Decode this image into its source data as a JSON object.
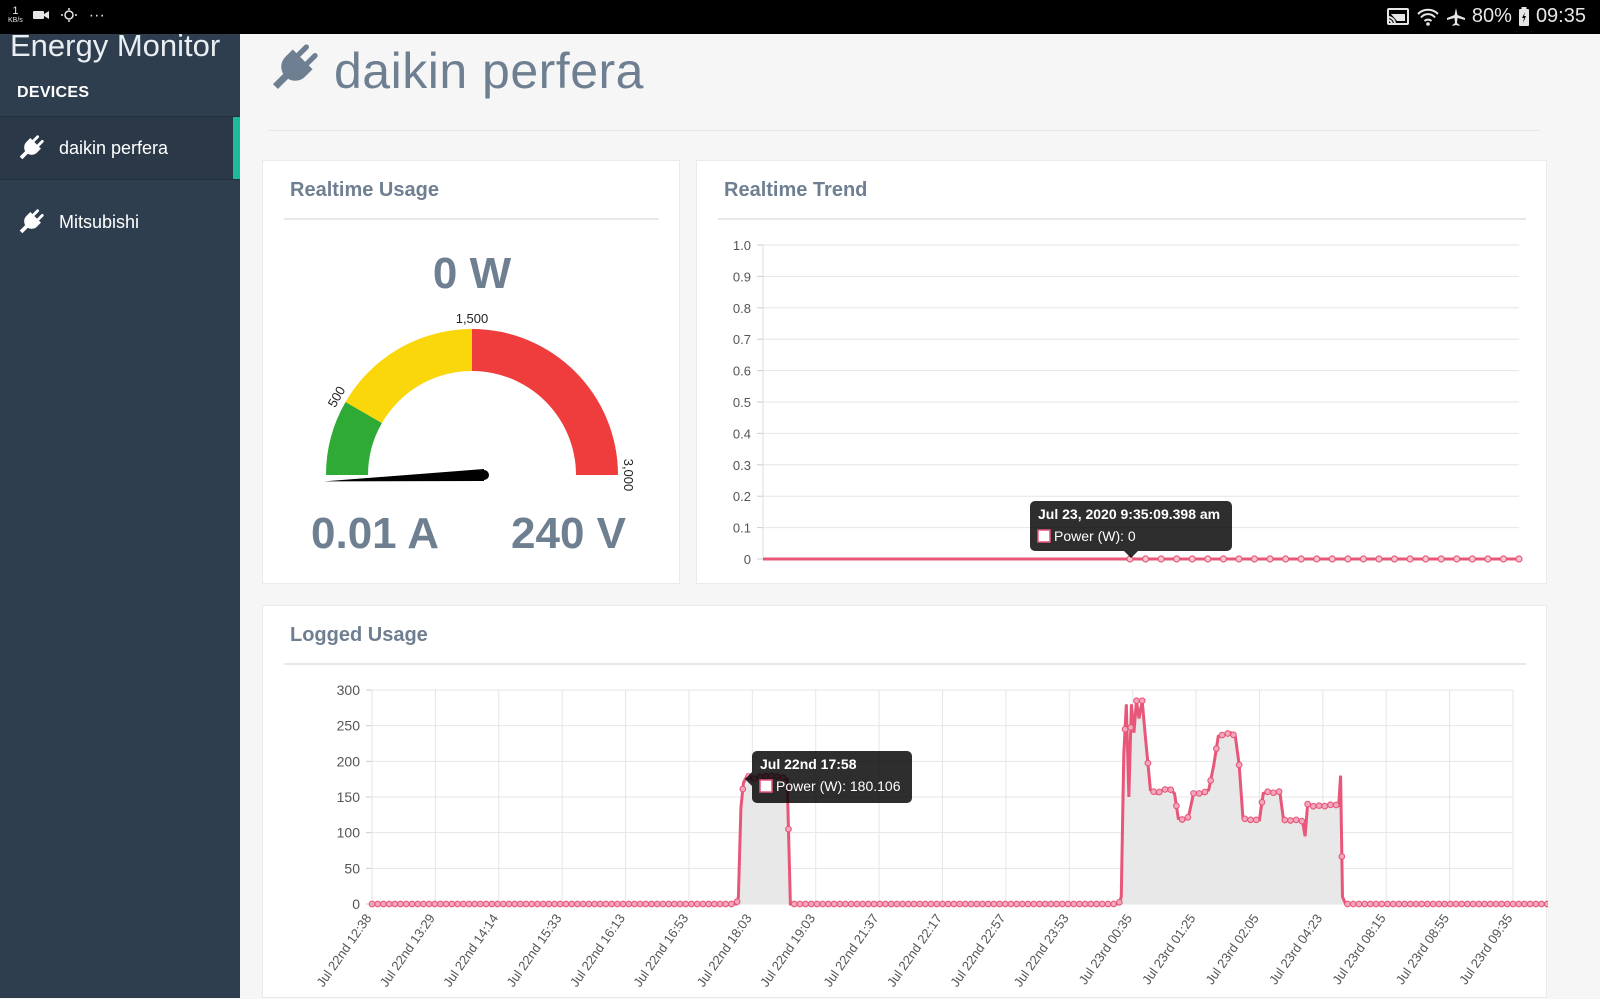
{
  "status_bar": {
    "kbs_value": "1",
    "kbs_unit": "KB/s",
    "more": "···",
    "battery": "80%",
    "time": "09:35"
  },
  "sidebar": {
    "brand": "Energy Monitor",
    "section_label": "DEVICES",
    "items": [
      {
        "label": "daikin perfera",
        "active": true
      },
      {
        "label": "Mitsubishi",
        "active": false
      }
    ]
  },
  "header": {
    "title": "daikin perfera"
  },
  "realtime_usage": {
    "title": "Realtime Usage",
    "power": "0 W",
    "current": "0.01 A",
    "voltage": "240 V",
    "gauge": {
      "min": 0,
      "max": 3000,
      "value": 0,
      "tick_labels": [
        {
          "value": 500,
          "label": "500"
        },
        {
          "value": 1500,
          "label": "1,500"
        },
        {
          "value": 3000,
          "label": "3,000"
        }
      ],
      "bands": [
        {
          "from": 0,
          "to": 500,
          "color": "#2eaa35"
        },
        {
          "from": 500,
          "to": 1500,
          "color": "#fad70a"
        },
        {
          "from": 1500,
          "to": 3000,
          "color": "#ef3c3c"
        }
      ]
    }
  },
  "realtime_trend": {
    "title": "Realtime Trend",
    "tooltip_title": "Jul 23, 2020 9:35:09.398 am",
    "tooltip_label": "Power (W): 0"
  },
  "logged_usage": {
    "title": "Logged Usage",
    "tooltip_title": "Jul 22nd 17:58",
    "tooltip_label": "Power (W): 180.106"
  },
  "chart_data": [
    {
      "type": "line",
      "name": "realtime-trend",
      "series": [
        {
          "name": "Power (W)",
          "values": [
            0,
            0,
            0,
            0,
            0,
            0,
            0,
            0,
            0,
            0,
            0,
            0,
            0,
            0,
            0,
            0,
            0,
            0,
            0,
            0,
            0,
            0,
            0,
            0,
            0,
            0
          ]
        }
      ],
      "ylim": [
        0,
        1.0
      ],
      "yticks": [
        "1.0",
        "0.9",
        "0.8",
        "0.7",
        "0.6",
        "0.5",
        "0.4",
        "0.3",
        "0.2",
        "0.1",
        "0"
      ],
      "line_color": "#e8577a",
      "grid": true
    },
    {
      "type": "area",
      "name": "logged-usage",
      "series": [
        {
          "name": "Power (W)"
        }
      ],
      "ylim": [
        0,
        300
      ],
      "yticks": [
        "300",
        "250",
        "200",
        "150",
        "100",
        "50",
        "0"
      ],
      "xticks": [
        "Jul 22nd 12:38",
        "Jul 22nd 13:29",
        "Jul 22nd 14:14",
        "Jul 22nd 15:33",
        "Jul 22nd 16:13",
        "Jul 22nd 16:53",
        "Jul 22nd 18:03",
        "Jul 22nd 19:03",
        "Jul 22nd 21:37",
        "Jul 22nd 22:17",
        "Jul 22nd 22:57",
        "Jul 22nd 23:53",
        "Jul 23rd 00:35",
        "Jul 23rd 01:25",
        "Jul 23rd 02:05",
        "Jul 23rd 04:23",
        "Jul 23rd 08:15",
        "Jul 23rd 08:55",
        "Jul 23rd 09:35"
      ],
      "points": [
        [
          0,
          0
        ],
        [
          5.75,
          0
        ],
        [
          5.78,
          10
        ],
        [
          5.82,
          135
        ],
        [
          5.86,
          170
        ],
        [
          5.92,
          180.106
        ],
        [
          6.0,
          175
        ],
        [
          6.1,
          178
        ],
        [
          6.3,
          180
        ],
        [
          6.45,
          178
        ],
        [
          6.55,
          175
        ],
        [
          6.6,
          0
        ],
        [
          6.68,
          0
        ],
        [
          11.78,
          0
        ],
        [
          11.82,
          10
        ],
        [
          11.86,
          210
        ],
        [
          11.9,
          280
        ],
        [
          11.94,
          150
        ],
        [
          11.98,
          280
        ],
        [
          12.02,
          240
        ],
        [
          12.06,
          285
        ],
        [
          12.1,
          260
        ],
        [
          12.15,
          285
        ],
        [
          12.2,
          235
        ],
        [
          12.28,
          160
        ],
        [
          12.38,
          155
        ],
        [
          12.48,
          160
        ],
        [
          12.58,
          162
        ],
        [
          12.66,
          155
        ],
        [
          12.72,
          120
        ],
        [
          12.8,
          118
        ],
        [
          12.88,
          122
        ],
        [
          12.96,
          155
        ],
        [
          13.1,
          155
        ],
        [
          13.2,
          160
        ],
        [
          13.28,
          195
        ],
        [
          13.35,
          235
        ],
        [
          13.45,
          238
        ],
        [
          13.55,
          240
        ],
        [
          13.62,
          235
        ],
        [
          13.68,
          195
        ],
        [
          13.74,
          120
        ],
        [
          13.85,
          118
        ],
        [
          14.0,
          118
        ],
        [
          14.06,
          155
        ],
        [
          14.15,
          158
        ],
        [
          14.25,
          155
        ],
        [
          14.32,
          158
        ],
        [
          14.38,
          118
        ],
        [
          14.48,
          117
        ],
        [
          14.58,
          118
        ],
        [
          14.68,
          116
        ],
        [
          14.72,
          95
        ],
        [
          14.76,
          140
        ],
        [
          14.85,
          137
        ],
        [
          14.95,
          138
        ],
        [
          15.05,
          137
        ],
        [
          15.15,
          140
        ],
        [
          15.25,
          138
        ],
        [
          15.28,
          180
        ],
        [
          15.31,
          10
        ],
        [
          15.36,
          0
        ],
        [
          18.95,
          0
        ]
      ],
      "line_color": "#e8577a",
      "fill_color": "#e6e6e6",
      "grid": true
    }
  ]
}
